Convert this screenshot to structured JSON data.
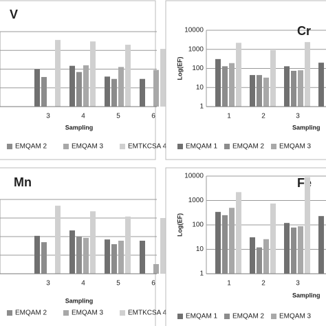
{
  "chart_data": [
    {
      "type": "bar",
      "title": "V",
      "xlabel": "Sampling",
      "categories": [
        "3",
        "4",
        "5",
        "6"
      ],
      "ylim": [
        1,
        10000
      ],
      "log_y": true,
      "grid": true,
      "series": [
        {
          "name": null,
          "color": "#707070",
          "values": [
            100,
            150,
            40,
            30
          ]
        },
        {
          "name": "EMQAM 2",
          "color": "#8c8c8c",
          "values": [
            38,
            70,
            30,
            null
          ]
        },
        {
          "name": "EMQAM 3",
          "color": "#a8a8a8",
          "values": [
            null,
            160,
            130,
            90
          ]
        },
        {
          "name": "EMTKCSA 4",
          "color": "#d0d0d0",
          "values": [
            3600,
            3000,
            2000,
            1200
          ]
        }
      ]
    },
    {
      "type": "bar",
      "title": "Cr",
      "xlabel": "Sampling",
      "ylabel": "Log(EF)",
      "categories": [
        "1",
        "2",
        "3",
        null
      ],
      "ylim": [
        1,
        10000
      ],
      "log_y": true,
      "grid": true,
      "yticks": [
        1,
        10,
        100,
        1000,
        10000
      ],
      "series": [
        {
          "name": "EMQAM 1",
          "color": "#707070",
          "values": [
            310,
            45,
            130,
            200
          ]
        },
        {
          "name": "EMQAM 2",
          "color": "#8c8c8c",
          "values": [
            130,
            45,
            75,
            null
          ]
        },
        {
          "name": "EMQAM 3",
          "color": "#a8a8a8",
          "values": [
            190,
            33,
            80,
            null
          ]
        },
        {
          "name": null,
          "color": "#d0d0d0",
          "values": [
            2200,
            900,
            2400,
            null
          ]
        }
      ]
    },
    {
      "type": "bar",
      "title": "Mn",
      "xlabel": "Sampling",
      "categories": [
        "3",
        "4",
        "5",
        "6"
      ],
      "ylim": [
        1,
        10000
      ],
      "log_y": true,
      "grid": true,
      "series": [
        {
          "name": null,
          "color": "#707070",
          "values": [
            110,
            215,
            70,
            60
          ]
        },
        {
          "name": "EMQAM 2",
          "color": "#8c8c8c",
          "values": [
            50,
            100,
            39,
            null
          ]
        },
        {
          "name": "EMQAM 3",
          "color": "#a8a8a8",
          "values": [
            null,
            85,
            60,
            3.3
          ]
        },
        {
          "name": "EMTKCSA 4",
          "color": "#d0d0d0",
          "values": [
            4600,
            2300,
            1200,
            1000
          ]
        }
      ]
    },
    {
      "type": "bar",
      "title": "Fe",
      "xlabel": "Sampling",
      "ylabel": "Log(EF)",
      "categories": [
        "1",
        "2",
        "3",
        null
      ],
      "ylim": [
        1,
        10000
      ],
      "log_y": true,
      "grid": true,
      "yticks": [
        1,
        10,
        100,
        1000,
        10000
      ],
      "series": [
        {
          "name": "EMQAM 1",
          "color": "#707070",
          "values": [
            340,
            31,
            120,
            230
          ]
        },
        {
          "name": "EMQAM 2",
          "color": "#8c8c8c",
          "values": [
            250,
            12,
            78,
            null
          ]
        },
        {
          "name": "EMQAM 3",
          "color": "#a8a8a8",
          "values": [
            500,
            26,
            88,
            null
          ]
        },
        {
          "name": null,
          "color": "#d0d0d0",
          "values": [
            2200,
            750,
            9000,
            null
          ]
        }
      ]
    }
  ]
}
